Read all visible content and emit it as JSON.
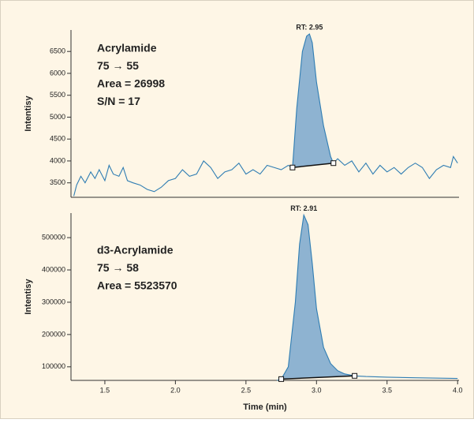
{
  "chart_data": [
    {
      "type": "line",
      "ylabel": "Intentisy",
      "annotations": [
        "Acrylamide",
        "75 → 55",
        "Area = 26998",
        "S/N = 17"
      ],
      "peak_label": "RT: 2.95",
      "xlim": [
        1.26,
        4.01
      ],
      "ylim": [
        3170,
        6990
      ],
      "yticks": [
        3500,
        4000,
        4500,
        5000,
        5500,
        6000,
        6500
      ],
      "color": "#2f7db3",
      "fill_color": "#7aa7cc",
      "x": [
        1.28,
        1.3,
        1.33,
        1.36,
        1.4,
        1.43,
        1.46,
        1.5,
        1.53,
        1.56,
        1.6,
        1.63,
        1.66,
        1.7,
        1.75,
        1.8,
        1.85,
        1.9,
        1.95,
        2.0,
        2.05,
        2.1,
        2.15,
        2.2,
        2.25,
        2.3,
        2.35,
        2.4,
        2.45,
        2.5,
        2.55,
        2.6,
        2.65,
        2.7,
        2.75,
        2.8,
        2.83,
        2.86,
        2.9,
        2.93,
        2.95,
        2.97,
        3.0,
        3.05,
        3.1,
        3.12,
        3.15,
        3.2,
        3.25,
        3.3,
        3.35,
        3.4,
        3.45,
        3.5,
        3.55,
        3.6,
        3.65,
        3.7,
        3.75,
        3.8,
        3.85,
        3.9,
        3.95,
        3.97,
        4.0
      ],
      "values": [
        3200,
        3450,
        3650,
        3500,
        3750,
        3600,
        3800,
        3550,
        3900,
        3700,
        3650,
        3850,
        3550,
        3500,
        3450,
        3350,
        3300,
        3400,
        3550,
        3600,
        3800,
        3650,
        3700,
        4000,
        3850,
        3600,
        3750,
        3800,
        3950,
        3700,
        3800,
        3700,
        3900,
        3850,
        3800,
        3900,
        3850,
        5200,
        6500,
        6850,
        6900,
        6700,
        5800,
        4800,
        4100,
        3950,
        4050,
        3900,
        4000,
        3750,
        3950,
        3700,
        3900,
        3750,
        3850,
        3700,
        3850,
        3950,
        3850,
        3600,
        3800,
        3900,
        3850,
        4100,
        3950
      ],
      "integration": {
        "x": [
          2.83,
          3.12
        ],
        "y": [
          3850,
          3950
        ]
      }
    },
    {
      "type": "line",
      "ylabel": "Intentisy",
      "xlabel": "Time (min)",
      "annotations": [
        "d3-Acrylamide",
        "75 → 58",
        "Area = 5523570"
      ],
      "peak_label": "RT: 2.91",
      "xlim": [
        1.26,
        4.01
      ],
      "xticks": [
        1.5,
        2.0,
        2.5,
        3.0,
        3.5,
        4.0
      ],
      "xtick_labels": [
        "1.5",
        "2.0",
        "2.5",
        "3.0",
        "3.5",
        "4.0"
      ],
      "ylim": [
        58000,
        576000
      ],
      "yticks": [
        100000,
        200000,
        300000,
        400000,
        500000
      ],
      "color": "#2f7db3",
      "fill_color": "#7aa7cc",
      "x": [
        2.72,
        2.75,
        2.8,
        2.85,
        2.88,
        2.91,
        2.94,
        2.97,
        3.0,
        3.05,
        3.1,
        3.15,
        3.2,
        3.27,
        3.35,
        3.5,
        3.7,
        4.0
      ],
      "values": [
        58000,
        62000,
        100000,
        300000,
        480000,
        570000,
        540000,
        420000,
        280000,
        160000,
        110000,
        88000,
        78000,
        72000,
        70000,
        68000,
        66000,
        64000
      ],
      "integration": {
        "x": [
          2.75,
          3.27
        ],
        "y": [
          62000,
          72000
        ]
      }
    }
  ]
}
